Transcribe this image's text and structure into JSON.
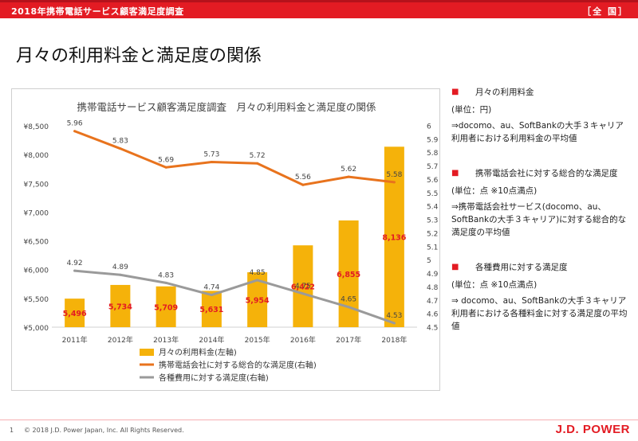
{
  "header": {
    "survey_title": "2018年携帯電話サービス顧客満足度調査",
    "region": "［全 国］",
    "page_title": "月々の利用料金と満足度の関係"
  },
  "notes": [
    {
      "title": "月々の利用料金",
      "unit": "(単位：円)",
      "desc": "⇒docomo、au、SoftBankの大手３キャリア利用者における利用料金の平均値"
    },
    {
      "title": "携帯電話会社に対する総合的な満足度",
      "unit": "(単位：点 ※10点満点)",
      "desc": "⇒携帯電話会社サービス(docomo、au、SoftBankの大手３キャリア)に対する総合的な満足度の平均値"
    },
    {
      "title": "各種費用に対する満足度",
      "unit": "(単位：点 ※10点満点)",
      "desc": "⇒ docomo、au、SoftBankの大手３キャリア利用者における各種料金に対する満足度の平均値"
    }
  ],
  "footer": {
    "page": "1",
    "copyright": "© 2018 J.D. Power Japan, Inc. All Rights Reserved.",
    "logo": "J.D. POWER"
  },
  "colors": {
    "brand_red": "#e31b23",
    "bar": "#f5b20a",
    "overall_line": "#e8731d",
    "cost_line": "#9a9a9a",
    "bar_label": "#e31b23"
  },
  "chart_data": {
    "type": "bar",
    "title": "携帯電話サービス顧客満足度調査　月々の利用料金と満足度の関係",
    "categories": [
      "2011年",
      "2012年",
      "2013年",
      "2014年",
      "2015年",
      "2016年",
      "2017年",
      "2018年"
    ],
    "left_axis": {
      "min": 5000,
      "max": 8500,
      "step": 500,
      "ticks": [
        "¥5,000",
        "¥5,500",
        "¥6,000",
        "¥6,500",
        "¥7,000",
        "¥7,500",
        "¥8,000",
        "¥8,500"
      ]
    },
    "right_axis": {
      "min": 4.5,
      "max": 6.0,
      "step": 0.1,
      "ticks": [
        "4.5",
        "4.6",
        "4.7",
        "4.8",
        "4.9",
        "5",
        "5.1",
        "5.2",
        "5.3",
        "5.4",
        "5.5",
        "5.6",
        "5.7",
        "5.8",
        "5.9",
        "6"
      ]
    },
    "series": [
      {
        "name": "月々の利用料金(左軸)",
        "kind": "bar",
        "axis": "left",
        "values": [
          5496,
          5734,
          5709,
          5631,
          5954,
          6422,
          6855,
          8136
        ],
        "labels": [
          "5,496",
          "5,734",
          "5,709",
          "5,631",
          "5,954",
          "6,422",
          "6,855",
          "8,136"
        ]
      },
      {
        "name": "携帯電話会社に対する総合的な満足度(右軸)",
        "kind": "line",
        "axis": "right",
        "values": [
          5.96,
          5.83,
          5.69,
          5.73,
          5.72,
          5.56,
          5.62,
          5.58
        ],
        "labels": [
          "5.96",
          "5.83",
          "5.69",
          "5.73",
          "5.72",
          "5.56",
          "5.62",
          "5.58"
        ]
      },
      {
        "name": "各種費用に対する満足度(右軸)",
        "kind": "line",
        "axis": "right",
        "values": [
          4.92,
          4.89,
          4.83,
          4.74,
          4.85,
          4.75,
          4.65,
          4.53
        ],
        "labels": [
          "4.92",
          "4.89",
          "4.83",
          "4.74",
          "4.85",
          "4.75",
          "4.65",
          "4.53"
        ]
      }
    ]
  }
}
